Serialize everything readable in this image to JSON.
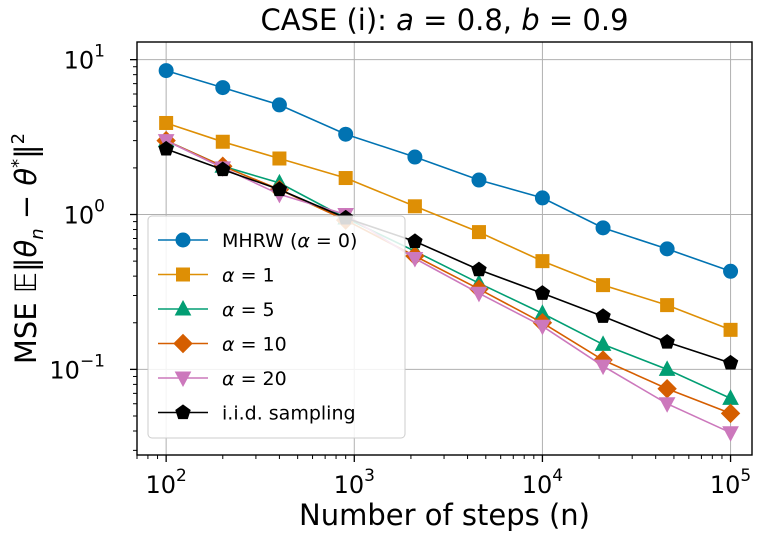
{
  "chart_data": {
    "type": "line",
    "title": "CASE (i): a = 0.8, b = 0.9",
    "title_parts": {
      "prefix": "CASE (i): ",
      "a_name": "a",
      "a_value": " = 0.8, ",
      "b_name": "b",
      "b_value": " = 0.9"
    },
    "xlabel": "Number of steps (n)",
    "ylabel": "MSE 𝔼‖θₙ − θ*‖²",
    "ylabel_parts": {
      "prefix": "MSE ",
      "E": "𝔼",
      "open": "‖",
      "theta": "θ",
      "sub_n": "n",
      "minus": " − ",
      "theta2": "θ",
      "star": "*",
      "close": "‖",
      "sq": "2"
    },
    "x_scale": "log",
    "y_scale": "log",
    "xlim": [
      70,
      130000
    ],
    "ylim": [
      0.028,
      13
    ],
    "x_ticks": [
      {
        "value": 100,
        "base": "10",
        "exp": "2"
      },
      {
        "value": 1000,
        "base": "10",
        "exp": "3"
      },
      {
        "value": 10000,
        "base": "10",
        "exp": "4"
      },
      {
        "value": 100000,
        "base": "10",
        "exp": "5"
      }
    ],
    "y_ticks": [
      {
        "value": 0.1,
        "base": "10",
        "exp": "−1"
      },
      {
        "value": 1,
        "base": "10",
        "exp": "0"
      },
      {
        "value": 10,
        "base": "10",
        "exp": "1"
      }
    ],
    "grid": true,
    "legend_position": "lower-left",
    "x": [
      100,
      200,
      400,
      900,
      2100,
      4600,
      10000,
      21000,
      46000,
      100000
    ],
    "series": [
      {
        "name": "MHRW (α = 0)",
        "name_parts": [
          "MHRW (",
          "α",
          " = 0)"
        ],
        "color": "#0173b2",
        "marker": "circle",
        "values": [
          8.5,
          6.6,
          5.1,
          3.3,
          2.35,
          1.67,
          1.28,
          0.82,
          0.6,
          0.43
        ]
      },
      {
        "name": "α = 1",
        "name_parts": [
          "",
          "α",
          " = 1"
        ],
        "color": "#de8f05",
        "marker": "square",
        "values": [
          3.9,
          2.95,
          2.3,
          1.72,
          1.13,
          0.77,
          0.5,
          0.35,
          0.26,
          0.18
        ]
      },
      {
        "name": "α = 5",
        "name_parts": [
          "",
          "α",
          " = 5"
        ],
        "color": "#029e73",
        "marker": "triangle-up",
        "values": [
          3.0,
          2.05,
          1.6,
          0.95,
          0.58,
          0.36,
          0.23,
          0.145,
          0.1,
          0.065
        ]
      },
      {
        "name": "α = 10",
        "name_parts": [
          "",
          "α",
          " = 10"
        ],
        "color": "#d55e00",
        "marker": "diamond",
        "values": [
          3.0,
          2.05,
          1.45,
          0.92,
          0.54,
          0.33,
          0.2,
          0.115,
          0.075,
          0.052
        ]
      },
      {
        "name": "α = 20",
        "name_parts": [
          "",
          "α",
          " = 20"
        ],
        "color": "#cc78bc",
        "marker": "triangle-down",
        "values": [
          3.0,
          2.0,
          1.35,
          1.0,
          0.52,
          0.31,
          0.19,
          0.105,
          0.06,
          0.039
        ]
      },
      {
        "name": "i.i.d. sampling",
        "name_parts": [
          "i.i.d. sampling",
          "",
          ""
        ],
        "color": "#000000",
        "marker": "pentagon",
        "values": [
          2.65,
          1.95,
          1.45,
          0.95,
          0.67,
          0.44,
          0.31,
          0.22,
          0.15,
          0.11
        ]
      }
    ]
  }
}
